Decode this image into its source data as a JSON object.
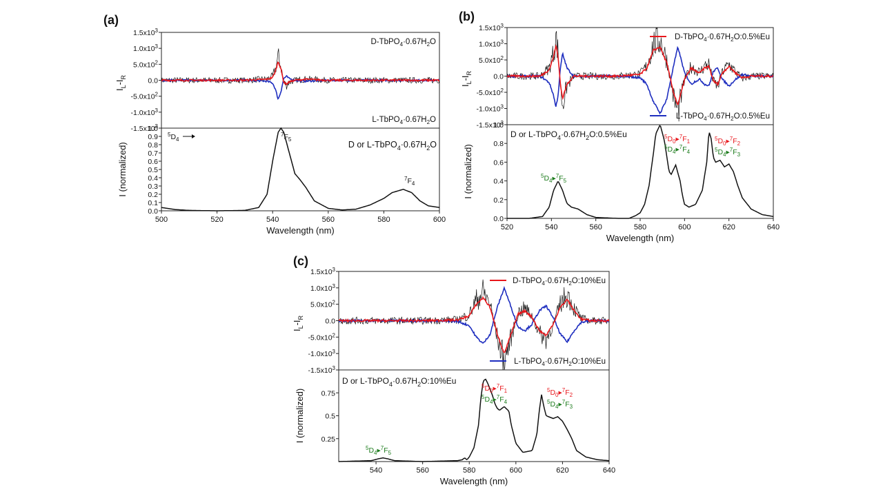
{
  "colors": {
    "red": "#e8161b",
    "blue": "#1d2dbf",
    "black": "#111111",
    "green": "#1a7a1a"
  },
  "panels": [
    {
      "label": "(a)",
      "top": {
        "ytick_labels": [
          "1.5x10^3",
          "1.0x10^3",
          "5.0x10^2",
          "0.0",
          "-5.0x10^2",
          "-1.0x10^3",
          "-1.5x10^3"
        ],
        "ytick_values": [
          1500,
          1000,
          500,
          0,
          -500,
          -1000,
          -1500
        ],
        "ylim": [
          -1500,
          1500
        ],
        "ylabel": "I_L-I_R",
        "legend": [
          {
            "text": "D-TbPO_4·0.67H_2O",
            "color": "red",
            "pos": "top",
            "line": false
          },
          {
            "text": "L-TbPO_4·0.67H_2O",
            "color": "blue",
            "pos": "bottom",
            "line": false
          }
        ]
      },
      "bottom": {
        "ytick_labels": [
          "0.0",
          "0.1",
          "0.2",
          "0.3",
          "0.4",
          "0.5",
          "0.6",
          "0.7",
          "0.8",
          "0.9",
          "1.0"
        ],
        "ytick_values": [
          0,
          0.1,
          0.2,
          0.3,
          0.4,
          0.5,
          0.6,
          0.7,
          0.8,
          0.9,
          1.0
        ],
        "ylim": [
          0,
          1.0
        ],
        "ylabel": "I (normalized)",
        "title": "D or L-TbPO_4·0.67H_2O"
      },
      "xlim": [
        500,
        600
      ],
      "xtick_labels": [
        "500",
        "520",
        "540",
        "560",
        "580",
        "600"
      ],
      "xtick_values": [
        500,
        520,
        540,
        560,
        580,
        600
      ],
      "xlabel": "Wavelength (nm)",
      "annotations": [
        {
          "text": "^5D_4",
          "color": "black"
        },
        {
          "text": "^7F_5",
          "color": "black"
        },
        {
          "text": "^7F_4",
          "color": "black"
        }
      ]
    },
    {
      "label": "(b)",
      "top": {
        "ytick_labels": [
          "1.5x10^3",
          "1.0x10^3",
          "5.0x10^2",
          "0.0",
          "-5.0x10^2",
          "-1.0x10^3",
          "-1.5x10^3"
        ],
        "ytick_values": [
          1500,
          1000,
          500,
          0,
          -500,
          -1000,
          -1500
        ],
        "ylim": [
          -1500,
          1500
        ],
        "ylabel": "I_L-I_R",
        "legend": [
          {
            "text": "D-TbPO_4·0.67H_2O:0.5%Eu",
            "color": "red",
            "pos": "top",
            "line": true
          },
          {
            "text": "L-TbPO_4·0.67H_2O:0.5%Eu",
            "color": "blue",
            "pos": "bottom",
            "line": true
          }
        ]
      },
      "bottom": {
        "ytick_labels": [
          "0.0",
          "0.2",
          "0.4",
          "0.6",
          "0.8",
          "1.0"
        ],
        "ytick_values": [
          0,
          0.2,
          0.4,
          0.6,
          0.8,
          1.0
        ],
        "ylim": [
          0,
          1.0
        ],
        "ylabel": "I (normalized)",
        "title": "D or L-TbPO_4·0.67H_2O:0.5%Eu"
      },
      "xlim": [
        520,
        640
      ],
      "xtick_labels": [
        "520",
        "540",
        "560",
        "580",
        "600",
        "620",
        "640"
      ],
      "xtick_values": [
        520,
        540,
        560,
        580,
        600,
        620,
        640
      ],
      "xlabel": "Wavelength (nm)",
      "annotations": [
        {
          "text": "^5D_4→^7F_5",
          "color": "green"
        },
        {
          "text": "^5D_0→^7F_1",
          "color": "red"
        },
        {
          "text": "^5D_4→^7F_4",
          "color": "green"
        },
        {
          "text": "^5D_0→^7F_2",
          "color": "red"
        },
        {
          "text": "^5D_4→^7F_3",
          "color": "green"
        }
      ]
    },
    {
      "label": "(c)",
      "top": {
        "ytick_labels": [
          "1.5x10^3",
          "1.0x10^3",
          "5.0x10^2",
          "0.0",
          "-5.0x10^2",
          "-1.0x10^3",
          "-1.5x10^3"
        ],
        "ytick_values": [
          1500,
          1000,
          500,
          0,
          -500,
          -1000,
          -1500
        ],
        "ylim": [
          -1500,
          1500
        ],
        "ylabel": "I_L-I_R",
        "legend": [
          {
            "text": "D-TbPO_4·0.67H_2O:10%Eu",
            "color": "red",
            "pos": "top",
            "line": true
          },
          {
            "text": "L-TbPO_4·0.67H_2O:10%Eu",
            "color": "blue",
            "pos": "bottom",
            "line": true
          }
        ]
      },
      "bottom": {
        "ytick_labels": [
          "0.25",
          "0.5",
          "0.75"
        ],
        "ytick_values": [
          0.25,
          0.5,
          0.75
        ],
        "ylim": [
          0,
          1.0
        ],
        "ylabel": "I (normalized)",
        "title": "D or L-TbPO_4·0.67H_2O:10%Eu"
      },
      "xlim": [
        524,
        640
      ],
      "xtick_labels": [
        "540",
        "560",
        "580",
        "600",
        "620",
        "640"
      ],
      "xtick_values": [
        540,
        560,
        580,
        600,
        620,
        640
      ],
      "xlabel": "Wavelength (nm)",
      "annotations": [
        {
          "text": "^5D_4→^7F_5",
          "color": "green"
        },
        {
          "text": "^5D_0→^7F_1",
          "color": "red"
        },
        {
          "text": "^5D_4→^7F_4",
          "color": "green"
        },
        {
          "text": "^5D_0→^7F_2",
          "color": "red"
        },
        {
          "text": "^5D_4→^7F_3",
          "color": "green"
        }
      ]
    }
  ],
  "chart_data": [
    {
      "type": "line",
      "panel": "(a)",
      "title": "",
      "xlabel": "Wavelength (nm)",
      "ylabel_top": "I_L-I_R",
      "ylabel_bottom": "I (normalized)",
      "xlim": [
        500,
        600
      ],
      "ylim_top": [
        -1500,
        1500
      ],
      "ylim_bottom": [
        0,
        1.0
      ],
      "cpl_series": [
        {
          "name": "D-TbPO_4·0.67H_2O",
          "color": "red",
          "x": [
            500,
            530,
            538,
            540,
            541,
            542,
            543,
            544,
            545,
            546,
            548,
            552,
            560,
            580,
            600
          ],
          "y": [
            0,
            0,
            30,
            90,
            280,
            600,
            350,
            -60,
            -120,
            -50,
            0,
            30,
            0,
            0,
            0
          ]
        },
        {
          "name": "L-TbPO_4·0.67H_2O",
          "color": "blue",
          "x": [
            500,
            530,
            538,
            540,
            541,
            542,
            543,
            544,
            545,
            546,
            548,
            552,
            560,
            580,
            600
          ],
          "y": [
            0,
            0,
            -30,
            -90,
            -280,
            -600,
            -350,
            60,
            120,
            50,
            0,
            -30,
            0,
            0,
            0
          ]
        }
      ],
      "emission_series": [
        {
          "name": "D or L-TbPO_4·0.67H_2O",
          "x": [
            500,
            502,
            505,
            510,
            520,
            530,
            535,
            538,
            540,
            542,
            543,
            544,
            546,
            548,
            550,
            552,
            555,
            560,
            565,
            570,
            575,
            580,
            583,
            587,
            590,
            593,
            596,
            600
          ],
          "y": [
            0.04,
            0.03,
            0.015,
            0.005,
            0.0,
            0.005,
            0.04,
            0.2,
            0.6,
            0.95,
            1.0,
            0.95,
            0.7,
            0.45,
            0.37,
            0.28,
            0.12,
            0.03,
            0.01,
            0.02,
            0.07,
            0.15,
            0.22,
            0.26,
            0.22,
            0.12,
            0.06,
            0.04
          ]
        }
      ]
    },
    {
      "type": "line",
      "panel": "(b)",
      "title": "",
      "xlabel": "Wavelength (nm)",
      "ylabel_top": "I_L-I_R",
      "ylabel_bottom": "I (normalized)",
      "xlim": [
        520,
        640
      ],
      "ylim_top": [
        -1500,
        1500
      ],
      "ylim_bottom": [
        0,
        1.0
      ],
      "cpl_series": [
        {
          "name": "D-TbPO_4·0.67H_2O:0.5%Eu",
          "color": "red",
          "x": [
            520,
            535,
            539,
            541,
            542,
            543,
            544,
            545,
            547,
            550,
            560,
            570,
            580,
            583,
            586,
            589,
            592,
            595,
            597,
            600,
            603,
            605,
            607,
            609,
            611,
            613,
            615,
            617,
            620,
            623,
            626,
            630,
            640
          ],
          "y": [
            0,
            0,
            200,
            600,
            950,
            600,
            -200,
            -700,
            -250,
            0,
            0,
            0,
            50,
            250,
            800,
            900,
            400,
            -500,
            -900,
            -100,
            250,
            150,
            100,
            250,
            300,
            -150,
            -250,
            100,
            300,
            100,
            -50,
            0,
            0
          ]
        },
        {
          "name": "L-TbPO_4·0.67H_2O:0.5%Eu",
          "color": "blue",
          "x": [
            520,
            535,
            539,
            541,
            542,
            543,
            544,
            545,
            547,
            550,
            560,
            570,
            580,
            583,
            586,
            589,
            592,
            595,
            597,
            600,
            603,
            605,
            607,
            609,
            611,
            613,
            615,
            617,
            620,
            623,
            626,
            630,
            640
          ],
          "y": [
            0,
            0,
            -200,
            -600,
            -950,
            -600,
            200,
            700,
            250,
            0,
            0,
            0,
            -50,
            -250,
            -800,
            -1150,
            -700,
            300,
            900,
            100,
            -250,
            -150,
            -100,
            -250,
            -300,
            150,
            250,
            -100,
            -300,
            -100,
            50,
            0,
            0
          ]
        }
      ],
      "emission_series": [
        {
          "name": "D or L-TbPO_4·0.67H_2O:0.5%Eu",
          "x": [
            520,
            530,
            536,
            539,
            541,
            543,
            545,
            547,
            549,
            552,
            556,
            560,
            570,
            575,
            578,
            580,
            582,
            584,
            586,
            587,
            589,
            591,
            593,
            594,
            596,
            598,
            599,
            600,
            602,
            605,
            608,
            610,
            611,
            612,
            613,
            614,
            616,
            618,
            620,
            622,
            624,
            626,
            630,
            635,
            640
          ],
          "y": [
            0.0,
            0.0,
            0.02,
            0.12,
            0.3,
            0.4,
            0.3,
            0.16,
            0.12,
            0.1,
            0.04,
            0.01,
            0.0,
            0.0,
            0.03,
            0.06,
            0.15,
            0.35,
            0.7,
            0.9,
            1.0,
            0.82,
            0.5,
            0.47,
            0.57,
            0.4,
            0.25,
            0.15,
            0.12,
            0.15,
            0.3,
            0.6,
            0.93,
            0.85,
            0.65,
            0.6,
            0.62,
            0.55,
            0.58,
            0.5,
            0.35,
            0.22,
            0.1,
            0.04,
            0.02
          ]
        }
      ]
    },
    {
      "type": "line",
      "panel": "(c)",
      "title": "",
      "xlabel": "Wavelength (nm)",
      "ylabel_top": "I_L-I_R",
      "ylabel_bottom": "I (normalized)",
      "xlim": [
        524,
        640
      ],
      "ylim_top": [
        -1500,
        1500
      ],
      "ylim_bottom": [
        0,
        1.0
      ],
      "cpl_series": [
        {
          "name": "D-TbPO_4·0.67H_2O:10%Eu",
          "color": "red",
          "x": [
            524,
            560,
            575,
            580,
            583,
            586,
            589,
            592,
            595,
            598,
            601,
            604,
            607,
            610,
            613,
            616,
            619,
            622,
            625,
            628,
            632,
            640
          ],
          "y": [
            0,
            0,
            20,
            150,
            500,
            700,
            400,
            -400,
            -1000,
            -400,
            200,
            300,
            100,
            -300,
            -450,
            -100,
            400,
            650,
            300,
            50,
            0,
            0
          ]
        },
        {
          "name": "L-TbPO_4·0.67H_2O:10%Eu",
          "color": "blue",
          "x": [
            524,
            560,
            575,
            580,
            583,
            586,
            589,
            592,
            595,
            598,
            601,
            604,
            607,
            610,
            613,
            616,
            619,
            622,
            625,
            628,
            632,
            640
          ],
          "y": [
            0,
            0,
            -20,
            -150,
            -500,
            -700,
            -400,
            400,
            1000,
            400,
            -200,
            -300,
            -100,
            300,
            450,
            100,
            -400,
            -650,
            -300,
            -50,
            0,
            0
          ]
        }
      ],
      "emission_series": [
        {
          "name": "D or L-TbPO_4·0.67H_2O:10%Eu",
          "x": [
            524,
            538,
            541,
            543,
            545,
            548,
            560,
            575,
            577,
            578,
            579,
            580,
            582,
            584,
            585,
            586,
            587,
            588,
            590,
            591,
            592,
            593,
            595,
            597,
            598,
            600,
            603,
            607,
            609,
            610,
            611,
            612,
            613,
            614,
            616,
            617,
            618,
            620,
            622,
            624,
            626,
            630,
            635,
            640
          ],
          "y": [
            0.0,
            0.01,
            0.03,
            0.04,
            0.03,
            0.01,
            0.0,
            0.01,
            0.02,
            0.04,
            0.02,
            0.05,
            0.15,
            0.4,
            0.7,
            0.88,
            0.9,
            0.85,
            0.72,
            0.63,
            0.58,
            0.56,
            0.6,
            0.55,
            0.4,
            0.2,
            0.1,
            0.12,
            0.3,
            0.55,
            0.73,
            0.6,
            0.5,
            0.49,
            0.47,
            0.48,
            0.49,
            0.44,
            0.35,
            0.25,
            0.12,
            0.05,
            0.02,
            0.01
          ]
        }
      ]
    }
  ]
}
